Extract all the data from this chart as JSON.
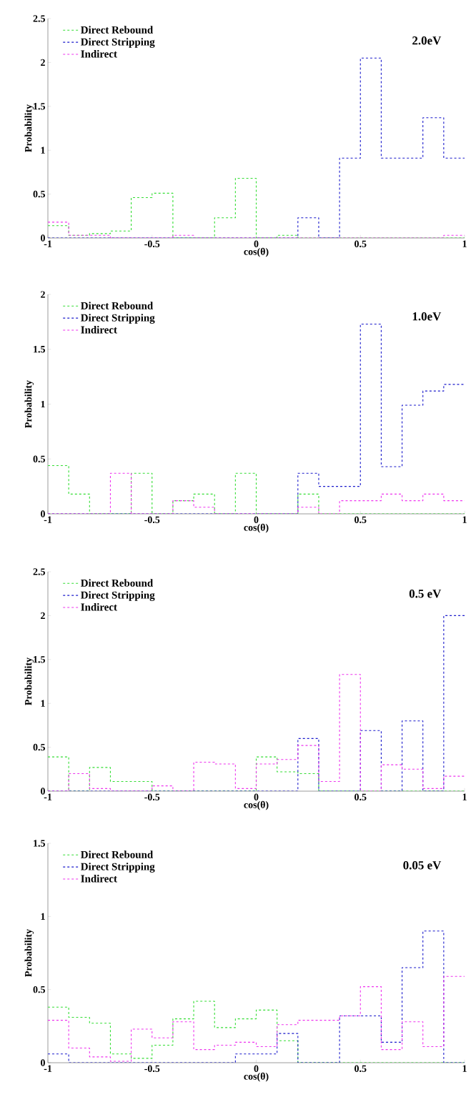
{
  "chart_data": [
    {
      "type": "histogram",
      "annotations": [
        "2.0eV"
      ],
      "xlabel": "cos(θ)",
      "ylabel": "Probability",
      "legend": "top left",
      "line_style": "dashed",
      "bins": [
        -1,
        -0.9,
        -0.8,
        -0.7,
        -0.6,
        -0.5,
        -0.4,
        -0.3,
        -0.2,
        -0.1,
        0,
        0.1,
        0.2,
        0.3,
        0.4,
        0.5,
        0.6,
        0.7,
        0.8,
        0.9,
        1
      ],
      "xlim": [
        -1,
        1
      ],
      "ylim": [
        0,
        2.5
      ],
      "xticks": [
        -1,
        -0.5,
        0,
        0.5,
        1
      ],
      "yticks": [
        0,
        0.5,
        1,
        1.5,
        2,
        2.5
      ],
      "series": [
        {
          "name": "Direct Rebound",
          "color": "#33dd33",
          "values": [
            0.14,
            0.03,
            0.05,
            0.08,
            0.46,
            0.51,
            0,
            0,
            0.23,
            0.68,
            0,
            0.03,
            0,
            0,
            0,
            0,
            0,
            0,
            0,
            0
          ]
        },
        {
          "name": "Direct Stripping",
          "color": "#1a1acc",
          "values": [
            0,
            0,
            0,
            0,
            0,
            0,
            0,
            0,
            0,
            0,
            0,
            0,
            0.23,
            0,
            0.91,
            2.05,
            0.91,
            0.91,
            1.37,
            0.91
          ]
        },
        {
          "name": "Indirect",
          "color": "#ee33ee",
          "values": [
            0.18,
            0.03,
            0.03,
            0,
            0,
            0,
            0.03,
            0,
            0,
            0,
            0,
            0,
            0,
            0,
            0,
            0,
            0,
            0,
            0,
            0.03
          ]
        }
      ]
    },
    {
      "type": "histogram",
      "annotations": [
        "1.0eV"
      ],
      "xlabel": "cos(θ)",
      "ylabel": "Probability",
      "legend": "top left",
      "line_style": "dashed",
      "bins": [
        -1,
        -0.9,
        -0.8,
        -0.7,
        -0.6,
        -0.5,
        -0.4,
        -0.3,
        -0.2,
        -0.1,
        0,
        0.1,
        0.2,
        0.3,
        0.4,
        0.5,
        0.6,
        0.7,
        0.8,
        0.9,
        1
      ],
      "xlim": [
        -1,
        1
      ],
      "ylim": [
        0,
        2
      ],
      "xticks": [
        -1,
        -0.5,
        0,
        0.5,
        1
      ],
      "yticks": [
        0,
        0.5,
        1,
        1.5,
        2
      ],
      "series": [
        {
          "name": "Direct Rebound",
          "color": "#33dd33",
          "values": [
            0.44,
            0.18,
            0,
            0,
            0.37,
            0,
            0.12,
            0.18,
            0,
            0.37,
            0,
            0,
            0.18,
            0,
            0,
            0,
            0,
            0,
            0,
            0
          ]
        },
        {
          "name": "Direct Stripping",
          "color": "#1a1acc",
          "values": [
            0,
            0,
            0,
            0,
            0,
            0,
            0,
            0,
            0,
            0,
            0,
            0,
            0.37,
            0.25,
            0.25,
            1.73,
            0.43,
            0.99,
            1.12,
            1.18
          ]
        },
        {
          "name": "Indirect",
          "color": "#ee33ee",
          "values": [
            0,
            0,
            0,
            0.37,
            0,
            0,
            0.12,
            0.06,
            0,
            0,
            0,
            0,
            0.06,
            0,
            0.12,
            0.12,
            0.18,
            0.12,
            0.18,
            0.12
          ]
        }
      ]
    },
    {
      "type": "histogram",
      "annotations": [
        "0.5 eV"
      ],
      "xlabel": "cos(θ)",
      "ylabel": "Probability",
      "legend": "top left",
      "line_style": "dashed",
      "bins": [
        -1,
        -0.9,
        -0.8,
        -0.7,
        -0.6,
        -0.5,
        -0.4,
        -0.3,
        -0.2,
        -0.1,
        0,
        0.1,
        0.2,
        0.3,
        0.4,
        0.5,
        0.6,
        0.7,
        0.8,
        0.9,
        1
      ],
      "xlim": [
        -1,
        1
      ],
      "ylim": [
        0,
        2.5
      ],
      "xticks": [
        -1,
        -0.5,
        0,
        0.5,
        1
      ],
      "yticks": [
        0,
        0.5,
        1,
        1.5,
        2,
        2.5
      ],
      "series": [
        {
          "name": "Direct Rebound",
          "color": "#33dd33",
          "values": [
            0.39,
            0,
            0.27,
            0.11,
            0.11,
            0,
            0,
            0,
            0,
            0,
            0.39,
            0.22,
            0.2,
            0,
            0,
            0,
            0,
            0,
            0,
            0
          ]
        },
        {
          "name": "Direct Stripping",
          "color": "#1a1acc",
          "values": [
            0,
            0,
            0,
            0,
            0,
            0,
            0,
            0,
            0,
            0,
            0,
            0,
            0.6,
            0,
            0,
            0.69,
            0,
            0.8,
            0,
            2.0
          ]
        },
        {
          "name": "Indirect",
          "color": "#ee33ee",
          "values": [
            0,
            0.2,
            0.03,
            0,
            0,
            0.06,
            0,
            0.33,
            0.31,
            0.03,
            0.31,
            0.36,
            0.52,
            0.11,
            1.33,
            0,
            0.3,
            0.25,
            0.03,
            0.17
          ]
        }
      ]
    },
    {
      "type": "histogram",
      "annotations": [
        "0.05 eV"
      ],
      "xlabel": "cos(θ)",
      "ylabel": "Probability",
      "legend": "top left",
      "line_style": "dashed",
      "bins": [
        -1,
        -0.9,
        -0.8,
        -0.7,
        -0.6,
        -0.5,
        -0.4,
        -0.3,
        -0.2,
        -0.1,
        0,
        0.1,
        0.2,
        0.3,
        0.4,
        0.5,
        0.6,
        0.7,
        0.8,
        0.9,
        1
      ],
      "xlim": [
        -1,
        1
      ],
      "ylim": [
        0,
        1.5
      ],
      "xticks": [
        -1,
        -0.5,
        0,
        0.5,
        1
      ],
      "yticks": [
        0,
        0.5,
        1,
        1.5
      ],
      "series": [
        {
          "name": "Direct Rebound",
          "color": "#33dd33",
          "values": [
            0.38,
            0.31,
            0.27,
            0.06,
            0.03,
            0.12,
            0.3,
            0.42,
            0.24,
            0.3,
            0.36,
            0.15,
            0,
            0,
            0,
            0,
            0,
            0,
            0,
            0
          ]
        },
        {
          "name": "Direct Stripping",
          "color": "#1a1acc",
          "values": [
            0.06,
            0,
            0,
            0,
            0,
            0,
            0,
            0,
            0,
            0.06,
            0.06,
            0.2,
            0,
            0,
            0.32,
            0.32,
            0.14,
            0.65,
            0.9,
            0
          ]
        },
        {
          "name": "Indirect",
          "color": "#ee33ee",
          "values": [
            0.29,
            0.1,
            0.04,
            0.01,
            0.23,
            0.17,
            0.28,
            0.09,
            0.12,
            0.14,
            0.11,
            0.26,
            0.29,
            0.29,
            0.32,
            0.52,
            0.09,
            0.28,
            0.11,
            0.59
          ]
        }
      ]
    }
  ]
}
